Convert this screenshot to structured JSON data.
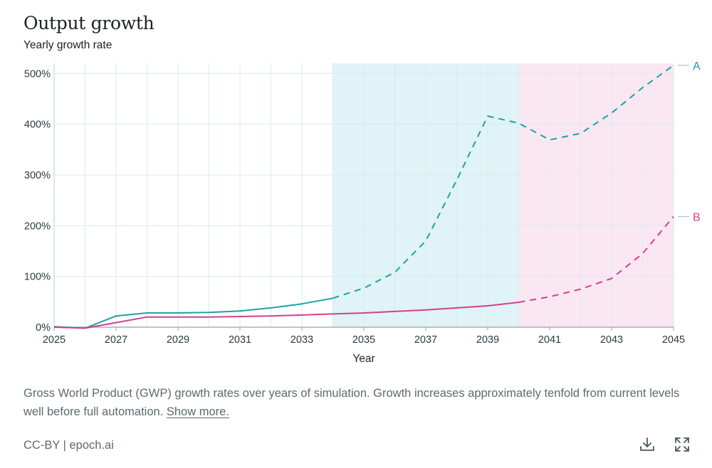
{
  "title": "Output growth",
  "subtitle": "Yearly growth rate",
  "caption": {
    "text": "Gross World Product (GWP) growth rates over years of simulation. Growth increases approximately tenfold from current levels well before full automation.",
    "show_more": "Show more."
  },
  "footer": {
    "license": "CC-BY | epoch.ai"
  },
  "icons": {
    "download": "download-icon",
    "fullscreen": "fullscreen-icon"
  },
  "colors": {
    "series_a": "#1aa3a5",
    "series_b": "#d63f8f",
    "region_a": "#e0f3f6",
    "region_b": "#fbe7f2",
    "grid": "#d8ecef",
    "axis_text": "#2c3a40"
  },
  "chart_data": {
    "type": "line",
    "title": "Output growth",
    "subtitle": "Yearly growth rate",
    "xlabel": "Year",
    "ylabel": "",
    "xlim": [
      2025,
      2045
    ],
    "ylim": [
      0,
      520
    ],
    "x_ticks": [
      2025,
      2027,
      2029,
      2031,
      2033,
      2035,
      2037,
      2039,
      2041,
      2043,
      2045
    ],
    "x_tick_labels": [
      "2025",
      "2027",
      "2029",
      "2031",
      "2033",
      "2035",
      "2037",
      "2039",
      "2041",
      "2043",
      "2045"
    ],
    "y_ticks": [
      0,
      100,
      200,
      300,
      400,
      500
    ],
    "y_tick_labels": [
      "0%",
      "100%",
      "200%",
      "300%",
      "400%",
      "500%"
    ],
    "grid": true,
    "shaded_regions": [
      {
        "series": "A",
        "from": 2034,
        "to": 2040
      },
      {
        "series": "B",
        "from": 2040,
        "to": 2045
      }
    ],
    "series": [
      {
        "name": "A",
        "label": "A",
        "solid_until": 2034,
        "points": [
          [
            2025,
            1
          ],
          [
            2026,
            -2
          ],
          [
            2027,
            22
          ],
          [
            2028,
            28
          ],
          [
            2029,
            28
          ],
          [
            2030,
            29
          ],
          [
            2031,
            32
          ],
          [
            2032,
            38
          ],
          [
            2033,
            46
          ],
          [
            2034,
            57
          ],
          [
            2035,
            77
          ],
          [
            2036,
            108
          ],
          [
            2037,
            170
          ],
          [
            2038,
            290
          ],
          [
            2039,
            416
          ],
          [
            2040,
            402
          ],
          [
            2041,
            369
          ],
          [
            2042,
            382
          ],
          [
            2043,
            422
          ],
          [
            2044,
            472
          ],
          [
            2045,
            516
          ]
        ]
      },
      {
        "name": "B",
        "label": "B",
        "solid_until": 2040,
        "points": [
          [
            2025,
            0
          ],
          [
            2026,
            -2
          ],
          [
            2027,
            9
          ],
          [
            2028,
            20
          ],
          [
            2029,
            20
          ],
          [
            2030,
            20
          ],
          [
            2031,
            21
          ],
          [
            2032,
            22
          ],
          [
            2033,
            24
          ],
          [
            2034,
            26
          ],
          [
            2035,
            28
          ],
          [
            2036,
            31
          ],
          [
            2037,
            34
          ],
          [
            2038,
            38
          ],
          [
            2039,
            42
          ],
          [
            2040,
            49
          ],
          [
            2041,
            60
          ],
          [
            2042,
            75
          ],
          [
            2043,
            96
          ],
          [
            2044,
            145
          ],
          [
            2045,
            218
          ]
        ]
      }
    ]
  }
}
